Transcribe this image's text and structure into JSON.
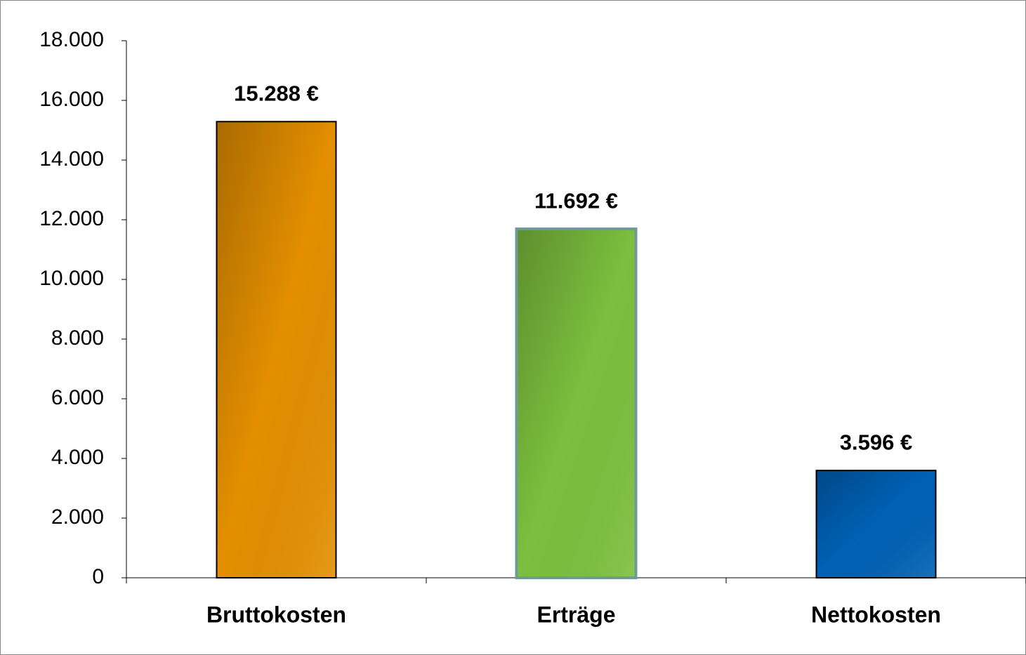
{
  "chart_data": {
    "type": "bar",
    "categories": [
      "Bruttokosten",
      "Erträge",
      "Nettokosten"
    ],
    "values": [
      15288,
      11692,
      3596
    ],
    "value_labels": [
      "15.288 €",
      "11.692 €",
      "3.596 €"
    ],
    "colors": [
      "#e38f00",
      "#7cbf3e",
      "#0061b5"
    ],
    "edgecolors": [
      "#000000",
      "#6f9a9a",
      "#000000"
    ],
    "ylim": [
      0,
      18000
    ],
    "yticks": [
      0,
      {
        "value": 2000,
        "label": "2.000"
      },
      {
        "value": 4000,
        "label": "4.000"
      },
      {
        "value": 6000,
        "label": "6.000"
      },
      {
        "value": 8000,
        "label": "8.000"
      },
      {
        "value": 10000,
        "label": "10.000"
      },
      {
        "value": 12000,
        "label": "12.000"
      },
      {
        "value": 14000,
        "label": "14.000"
      },
      {
        "value": 16000,
        "label": "16.000"
      },
      {
        "value": 18000,
        "label": "18.000"
      }
    ],
    "grid": false
  }
}
